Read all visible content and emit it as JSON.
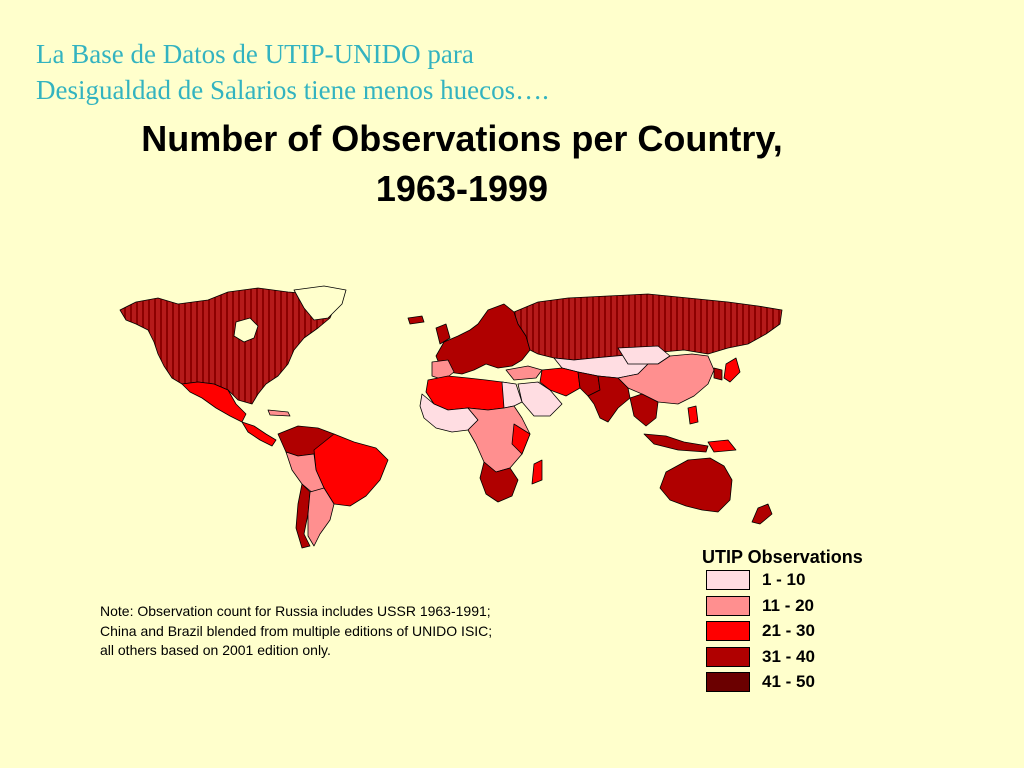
{
  "slide_title": {
    "line1": "La Base de Datos de UTIP-UNIDO para",
    "line2": "Desigualdad de Salarios tiene menos huecos…."
  },
  "map_title": {
    "line1": "Number of Observations per Country,",
    "line2": "1963-1999"
  },
  "note": "Note: Observation count for Russia includes USSR 1963-1991; China and Brazil blended from multiple editions of UNIDO ISIC; all others based on 2001 edition only.",
  "legend": {
    "title": "UTIP Observations",
    "items": [
      {
        "label": "1 - 10",
        "color": "#ffdde2"
      },
      {
        "label": "11 - 20",
        "color": "#ff8f8f"
      },
      {
        "label": "21 - 30",
        "color": "#ff0000"
      },
      {
        "label": "31 - 40",
        "color": "#b00000"
      },
      {
        "label": "41 - 50",
        "color": "#6b0000"
      }
    ]
  },
  "colors": {
    "background": "#ffffcc",
    "slide_title": "#33b3c0",
    "border": "#000000"
  }
}
